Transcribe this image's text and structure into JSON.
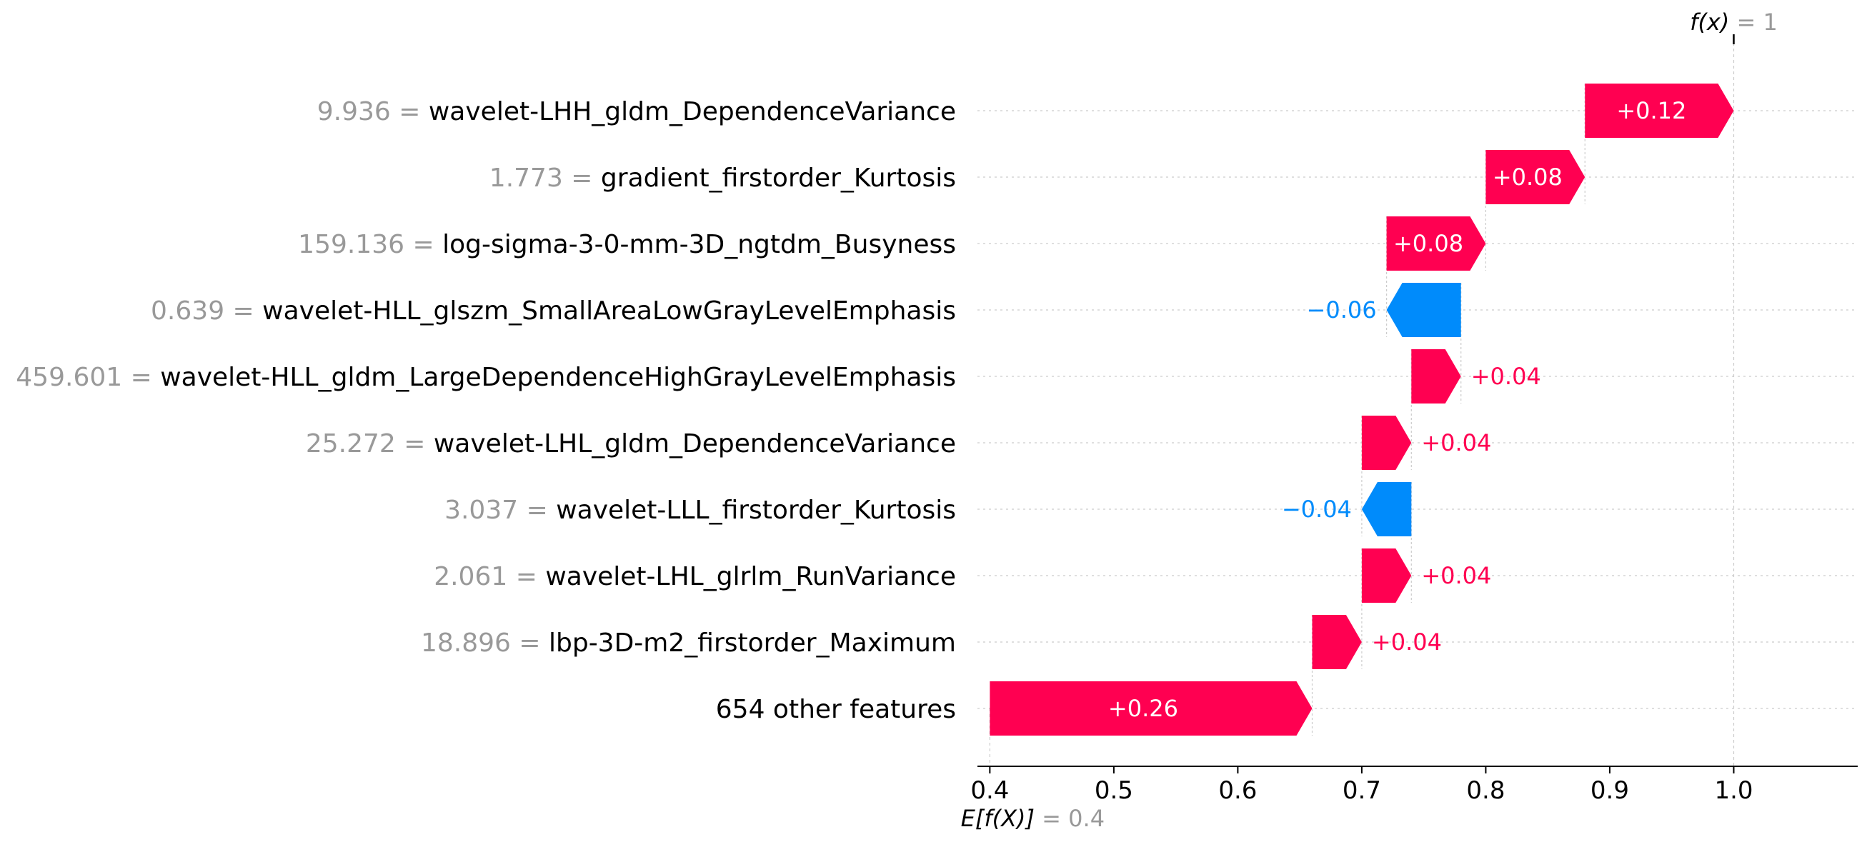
{
  "chart_data": {
    "type": "waterfall",
    "xlim": [
      0.39,
      1.1
    ],
    "xticks": [
      0.4,
      0.5,
      0.6,
      0.7,
      0.8,
      0.9,
      1.0
    ],
    "xtick_labels": [
      "0.4",
      "0.5",
      "0.6",
      "0.7",
      "0.8",
      "0.9",
      "1.0"
    ],
    "base": {
      "prefix": "E[f(X)]",
      "eq": "= 0.4",
      "value": 0.4
    },
    "output": {
      "prefix": "f(x)",
      "eq": "= 1",
      "value": 1.0
    },
    "features": [
      {
        "value": "9.936",
        "name": "wavelet-LHH_gldm_DependenceVariance",
        "contribution": 0.12,
        "label": "+0.12"
      },
      {
        "value": "1.773",
        "name": "gradient_firstorder_Kurtosis",
        "contribution": 0.08,
        "label": "+0.08"
      },
      {
        "value": "159.136",
        "name": "log-sigma-3-0-mm-3D_ngtdm_Busyness",
        "contribution": 0.08,
        "label": "+0.08"
      },
      {
        "value": "0.639",
        "name": "wavelet-HLL_glszm_SmallAreaLowGrayLevelEmphasis",
        "contribution": -0.06,
        "label": "−0.06"
      },
      {
        "value": "459.601",
        "name": "wavelet-HLL_gldm_LargeDependenceHighGrayLevelEmphasis",
        "contribution": 0.04,
        "label": "+0.04"
      },
      {
        "value": "25.272",
        "name": "wavelet-LHL_gldm_DependenceVariance",
        "contribution": 0.04,
        "label": "+0.04"
      },
      {
        "value": "3.037",
        "name": "wavelet-LLL_firstorder_Kurtosis",
        "contribution": -0.04,
        "label": "−0.04"
      },
      {
        "value": "2.061",
        "name": "wavelet-LHL_glrlm_RunVariance",
        "contribution": 0.04,
        "label": "+0.04"
      },
      {
        "value": "18.896",
        "name": "lbp-3D-m2_firstorder_Maximum",
        "contribution": 0.04,
        "label": "+0.04"
      },
      {
        "value": "",
        "name": "654 other features",
        "contribution": 0.26,
        "label": "+0.26"
      }
    ],
    "colors": {
      "positive": "#ff0051",
      "negative": "#008bfb",
      "muted": "#999999",
      "grid": "#cccccc",
      "axis": "#000000"
    }
  }
}
